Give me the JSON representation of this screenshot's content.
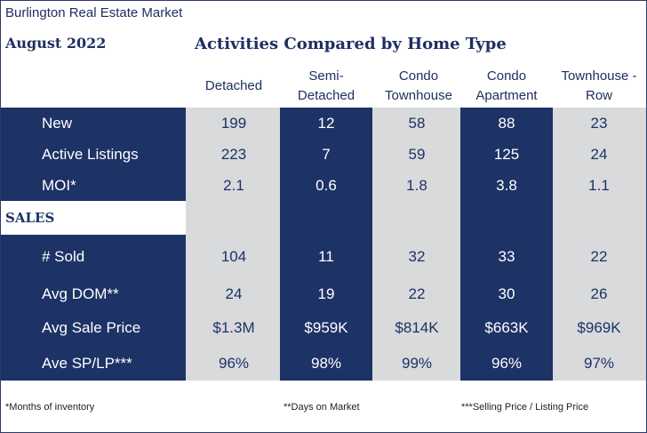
{
  "market_title": "Burlington Real Estate Market",
  "month": "August 2022",
  "title": "Activities Compared by Home Type",
  "columns": [
    "Detached",
    "Semi-\nDetached",
    "Condo\nTownhouse",
    "Condo\nApartment",
    "Townhouse -\nRow"
  ],
  "sales_label": "SALES",
  "rows": [
    {
      "label": "New",
      "values": [
        "199",
        "12",
        "58",
        "88",
        "23"
      ]
    },
    {
      "label": "Active Listings",
      "values": [
        "223",
        "7",
        "59",
        "125",
        "24"
      ]
    },
    {
      "label": "MOI*",
      "values": [
        "2.1",
        "0.6",
        "1.8",
        "3.8",
        "1.1"
      ]
    },
    {
      "label": "# Sold",
      "values": [
        "104",
        "11",
        "32",
        "33",
        "22"
      ]
    },
    {
      "label": "Avg DOM**",
      "values": [
        "24",
        "19",
        "22",
        "30",
        "26"
      ]
    },
    {
      "label": "Avg Sale Price",
      "values": [
        "$1.3M",
        "$959K",
        "$814K",
        "$663K",
        "$969K"
      ]
    },
    {
      "label": "Ave SP/LP***",
      "values": [
        "96%",
        "98%",
        "99%",
        "96%",
        "97%"
      ]
    }
  ],
  "footnotes": {
    "moi": "*Months of inventory",
    "dom": "**Days on Market",
    "splp": "***Selling Price / Listing Price"
  },
  "colors": {
    "navy": "#1d3265",
    "grey": "#d9dadc",
    "text_dark": "#1e2f62"
  }
}
